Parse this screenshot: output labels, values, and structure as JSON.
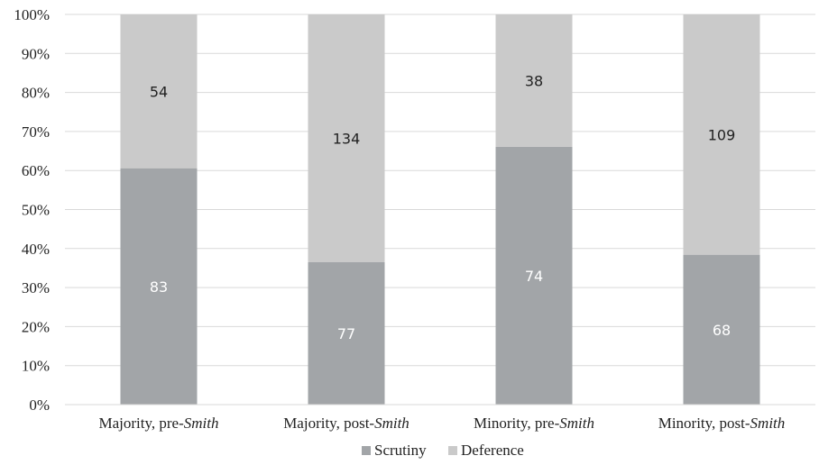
{
  "chart_data": {
    "type": "bar",
    "stacked": "percent",
    "categories": [
      {
        "pre": "Majority, pre-",
        "em": "Smith"
      },
      {
        "pre": "Majority, post-",
        "em": "Smith"
      },
      {
        "pre": "Minority, pre-",
        "em": "Smith"
      },
      {
        "pre": "Minority, post-",
        "em": "Smith"
      }
    ],
    "series": [
      {
        "name": "Scrutiny",
        "values": [
          83,
          77,
          74,
          68
        ],
        "color": "#a2a5a8",
        "label_color": "#ffffff"
      },
      {
        "name": "Deference",
        "values": [
          54,
          134,
          38,
          109
        ],
        "color": "#cacaca",
        "label_color": "#222222"
      }
    ],
    "yticks": [
      "0%",
      "10%",
      "20%",
      "30%",
      "40%",
      "50%",
      "60%",
      "70%",
      "80%",
      "90%",
      "100%"
    ],
    "ylim": [
      0,
      100
    ],
    "grid": true,
    "legend": "bottom"
  }
}
